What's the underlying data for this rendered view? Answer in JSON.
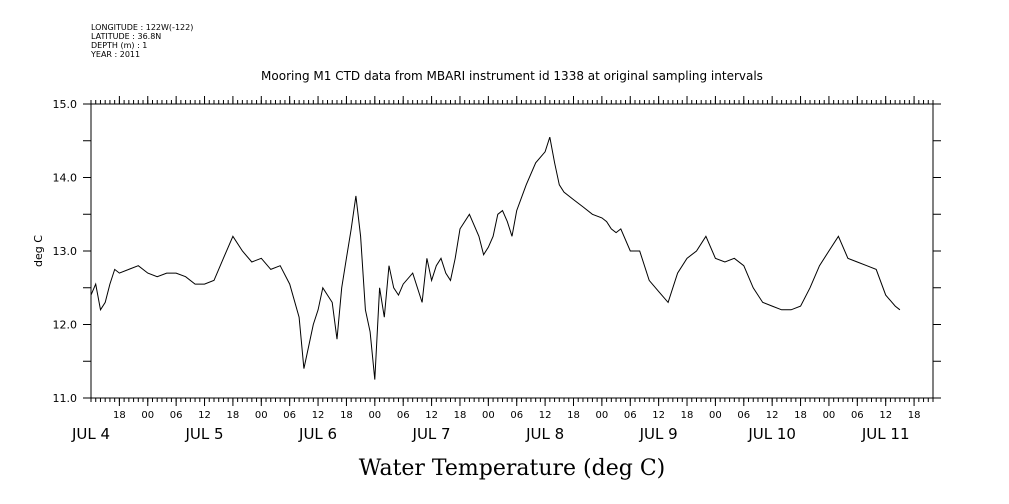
{
  "header": {
    "lines": [
      "LONGITUDE : 122W(-122)",
      "LATITUDE : 36.8N",
      "DEPTH (m) : 1",
      "YEAR : 2011"
    ]
  },
  "chart_data": {
    "type": "line",
    "title": "Mooring M1 CTD data from MBARI instrument id 1338 at original sampling intervals",
    "xlabel": "Water Temperature (deg C)",
    "ylabel": "deg C",
    "ylim": [
      11.0,
      15.0
    ],
    "yticks": [
      "11.0",
      "12.0",
      "13.0",
      "14.0",
      "15.0"
    ],
    "xlim": [
      "2011-07-04T12:00",
      "2011-07-11T22:00"
    ],
    "hour_ticks": [
      {
        "t": "2011-07-04T18:00",
        "label": "18"
      },
      {
        "t": "2011-07-05T00:00",
        "label": "00"
      },
      {
        "t": "2011-07-05T06:00",
        "label": "06"
      },
      {
        "t": "2011-07-05T12:00",
        "label": "12"
      },
      {
        "t": "2011-07-05T18:00",
        "label": "18"
      },
      {
        "t": "2011-07-06T00:00",
        "label": "00"
      },
      {
        "t": "2011-07-06T06:00",
        "label": "06"
      },
      {
        "t": "2011-07-06T12:00",
        "label": "12"
      },
      {
        "t": "2011-07-06T18:00",
        "label": "18"
      },
      {
        "t": "2011-07-07T00:00",
        "label": "00"
      },
      {
        "t": "2011-07-07T06:00",
        "label": "06"
      },
      {
        "t": "2011-07-07T12:00",
        "label": "12"
      },
      {
        "t": "2011-07-07T18:00",
        "label": "18"
      },
      {
        "t": "2011-07-08T00:00",
        "label": "00"
      },
      {
        "t": "2011-07-08T06:00",
        "label": "06"
      },
      {
        "t": "2011-07-08T12:00",
        "label": "12"
      },
      {
        "t": "2011-07-08T18:00",
        "label": "18"
      },
      {
        "t": "2011-07-09T00:00",
        "label": "00"
      },
      {
        "t": "2011-07-09T06:00",
        "label": "06"
      },
      {
        "t": "2011-07-09T12:00",
        "label": "12"
      },
      {
        "t": "2011-07-09T18:00",
        "label": "18"
      },
      {
        "t": "2011-07-10T00:00",
        "label": "00"
      },
      {
        "t": "2011-07-10T06:00",
        "label": "06"
      },
      {
        "t": "2011-07-10T12:00",
        "label": "12"
      },
      {
        "t": "2011-07-10T18:00",
        "label": "18"
      },
      {
        "t": "2011-07-11T00:00",
        "label": "00"
      },
      {
        "t": "2011-07-11T06:00",
        "label": "06"
      },
      {
        "t": "2011-07-11T12:00",
        "label": "12"
      },
      {
        "t": "2011-07-11T18:00",
        "label": "18"
      }
    ],
    "day_labels": [
      {
        "t": "2011-07-04T12:00",
        "label": "JUL  4"
      },
      {
        "t": "2011-07-05T12:00",
        "label": "JUL  5"
      },
      {
        "t": "2011-07-06T12:00",
        "label": "JUL  6"
      },
      {
        "t": "2011-07-07T12:00",
        "label": "JUL  7"
      },
      {
        "t": "2011-07-08T12:00",
        "label": "JUL  8"
      },
      {
        "t": "2011-07-09T12:00",
        "label": "JUL  9"
      },
      {
        "t": "2011-07-10T12:00",
        "label": "JUL 10"
      },
      {
        "t": "2011-07-11T12:00",
        "label": "JUL 11"
      }
    ],
    "series": [
      {
        "x": [
          "2011-07-04T12:00",
          "2011-07-04T13:00",
          "2011-07-04T14:00",
          "2011-07-04T15:00",
          "2011-07-04T16:00",
          "2011-07-04T17:00",
          "2011-07-04T18:00",
          "2011-07-04T20:00",
          "2011-07-04T22:00",
          "2011-07-05T00:00",
          "2011-07-05T02:00",
          "2011-07-05T04:00",
          "2011-07-05T06:00",
          "2011-07-05T08:00",
          "2011-07-05T10:00",
          "2011-07-05T12:00",
          "2011-07-05T14:00",
          "2011-07-05T16:00",
          "2011-07-05T18:00",
          "2011-07-05T20:00",
          "2011-07-05T22:00",
          "2011-07-06T00:00",
          "2011-07-06T02:00",
          "2011-07-06T04:00",
          "2011-07-06T06:00",
          "2011-07-06T08:00",
          "2011-07-06T09:00",
          "2011-07-06T10:00",
          "2011-07-06T11:00",
          "2011-07-06T12:00",
          "2011-07-06T13:00",
          "2011-07-06T14:00",
          "2011-07-06T15:00",
          "2011-07-06T16:00",
          "2011-07-06T17:00",
          "2011-07-06T18:00",
          "2011-07-06T19:00",
          "2011-07-06T20:00",
          "2011-07-06T21:00",
          "2011-07-06T22:00",
          "2011-07-06T23:00",
          "2011-07-07T00:00",
          "2011-07-07T01:00",
          "2011-07-07T02:00",
          "2011-07-07T03:00",
          "2011-07-07T04:00",
          "2011-07-07T05:00",
          "2011-07-07T06:00",
          "2011-07-07T08:00",
          "2011-07-07T10:00",
          "2011-07-07T11:00",
          "2011-07-07T12:00",
          "2011-07-07T13:00",
          "2011-07-07T14:00",
          "2011-07-07T15:00",
          "2011-07-07T16:00",
          "2011-07-07T17:00",
          "2011-07-07T18:00",
          "2011-07-07T20:00",
          "2011-07-07T22:00",
          "2011-07-07T23:00",
          "2011-07-08T00:00",
          "2011-07-08T01:00",
          "2011-07-08T02:00",
          "2011-07-08T03:00",
          "2011-07-08T04:00",
          "2011-07-08T05:00",
          "2011-07-08T06:00",
          "2011-07-08T08:00",
          "2011-07-08T10:00",
          "2011-07-08T12:00",
          "2011-07-08T13:00",
          "2011-07-08T14:00",
          "2011-07-08T15:00",
          "2011-07-08T16:00",
          "2011-07-08T18:00",
          "2011-07-08T20:00",
          "2011-07-08T22:00",
          "2011-07-09T00:00",
          "2011-07-09T01:00",
          "2011-07-09T02:00",
          "2011-07-09T03:00",
          "2011-07-09T04:00",
          "2011-07-09T06:00",
          "2011-07-09T08:00",
          "2011-07-09T10:00",
          "2011-07-09T12:00",
          "2011-07-09T14:00",
          "2011-07-09T16:00",
          "2011-07-09T18:00",
          "2011-07-09T20:00",
          "2011-07-09T22:00",
          "2011-07-10T00:00",
          "2011-07-10T02:00",
          "2011-07-10T04:00",
          "2011-07-10T06:00",
          "2011-07-10T08:00",
          "2011-07-10T10:00",
          "2011-07-10T12:00",
          "2011-07-10T14:00",
          "2011-07-10T16:00",
          "2011-07-10T18:00",
          "2011-07-10T20:00",
          "2011-07-10T22:00",
          "2011-07-11T00:00",
          "2011-07-11T02:00",
          "2011-07-11T04:00",
          "2011-07-11T06:00",
          "2011-07-11T08:00",
          "2011-07-11T10:00",
          "2011-07-11T12:00",
          "2011-07-11T14:00",
          "2011-07-11T15:00"
        ],
        "y": [
          12.4,
          12.55,
          12.2,
          12.3,
          12.55,
          12.75,
          12.7,
          12.75,
          12.8,
          12.7,
          12.65,
          12.7,
          12.7,
          12.65,
          12.55,
          12.55,
          12.6,
          12.9,
          13.2,
          13.0,
          12.85,
          12.9,
          12.75,
          12.8,
          12.55,
          12.1,
          11.4,
          11.7,
          12.0,
          12.2,
          12.5,
          12.4,
          12.3,
          11.8,
          12.5,
          12.9,
          13.3,
          13.75,
          13.2,
          12.2,
          11.9,
          11.25,
          12.5,
          12.1,
          12.8,
          12.5,
          12.4,
          12.55,
          12.7,
          12.3,
          12.9,
          12.6,
          12.8,
          12.9,
          12.7,
          12.6,
          12.9,
          13.3,
          13.5,
          13.2,
          12.95,
          13.05,
          13.2,
          13.5,
          13.55,
          13.4,
          13.2,
          13.55,
          13.9,
          14.2,
          14.35,
          14.55,
          14.2,
          13.9,
          13.8,
          13.7,
          13.6,
          13.5,
          13.45,
          13.4,
          13.3,
          13.25,
          13.3,
          13.0,
          13.0,
          12.6,
          12.45,
          12.3,
          12.7,
          12.9,
          13.0,
          13.2,
          12.9,
          12.85,
          12.9,
          12.8,
          12.5,
          12.3,
          12.25,
          12.2,
          12.2,
          12.25,
          12.5,
          12.8,
          13.0,
          13.2,
          12.9,
          12.85,
          12.8,
          12.75,
          12.4,
          12.25,
          12.2
        ]
      }
    ]
  }
}
